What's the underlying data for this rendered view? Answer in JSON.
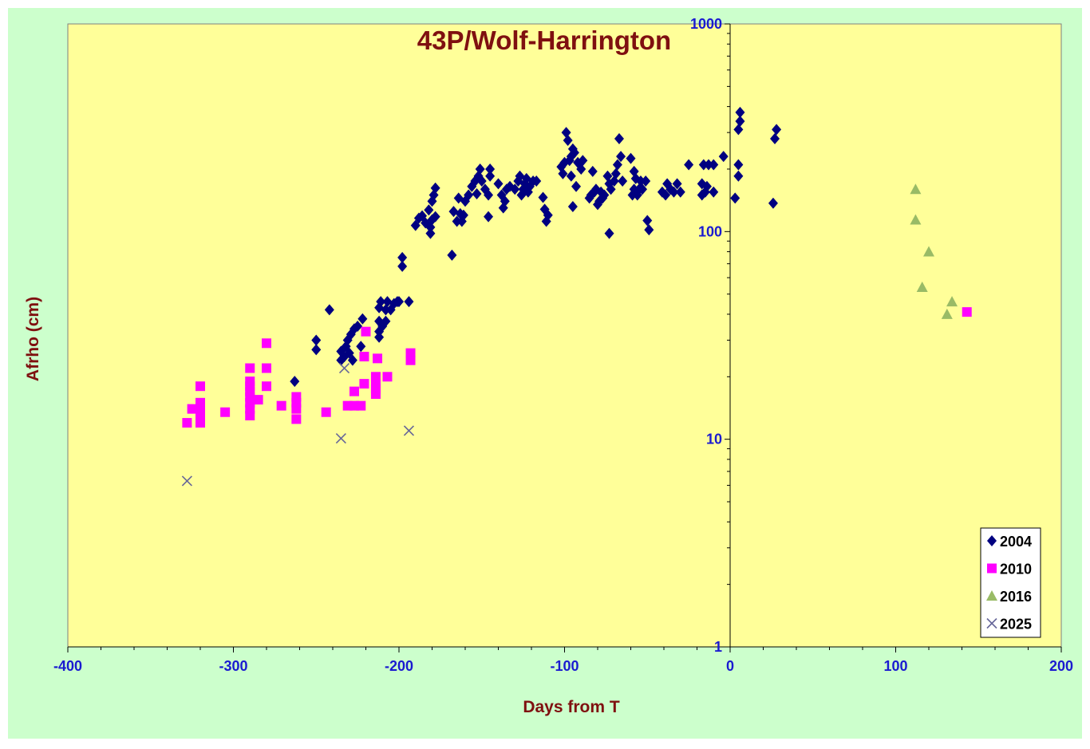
{
  "chart_data": {
    "type": "scatter",
    "title": "43P/Wolf-Harrington",
    "xlabel": "Days from T",
    "ylabel": "Afrho (cm)",
    "xlim": [
      -400,
      200
    ],
    "ylim": [
      1,
      1000
    ],
    "y_scale": "log",
    "x_ticks": [
      -400,
      -300,
      -200,
      -100,
      0,
      100,
      200
    ],
    "x_tick_labels": [
      "-400",
      "-300",
      "-200",
      "-100",
      "0",
      "100",
      "200"
    ],
    "y_ticks": [
      1,
      10,
      100,
      1000
    ],
    "y_tick_labels": [
      "1",
      "10",
      "100",
      "1000"
    ],
    "grid": false,
    "legend_position": "bottom-right",
    "colors": {
      "page_background": "#ccffcc",
      "plot_background": "#ffff99",
      "axis": "#000000"
    },
    "series": [
      {
        "name": "2004",
        "marker": "diamond",
        "color": "#000080",
        "points": [
          [
            -263,
            19
          ],
          [
            -250,
            27
          ],
          [
            -250,
            30
          ],
          [
            -242,
            42
          ],
          [
            -235,
            24
          ],
          [
            -235,
            26.5
          ],
          [
            -233,
            25
          ],
          [
            -232,
            28
          ],
          [
            -231,
            30
          ],
          [
            -230,
            26
          ],
          [
            -229,
            32
          ],
          [
            -228,
            24
          ],
          [
            -227,
            34
          ],
          [
            -225,
            35
          ],
          [
            -223,
            28
          ],
          [
            -222,
            38
          ],
          [
            -212,
            31
          ],
          [
            -212,
            33
          ],
          [
            -212,
            37
          ],
          [
            -212,
            43
          ],
          [
            -211,
            46
          ],
          [
            -210,
            35
          ],
          [
            -208,
            37
          ],
          [
            -208,
            42
          ],
          [
            -207,
            46
          ],
          [
            -205,
            42
          ],
          [
            -203,
            45
          ],
          [
            -201,
            46
          ],
          [
            -200,
            46
          ],
          [
            -198,
            68
          ],
          [
            -198,
            75
          ],
          [
            -194,
            46
          ],
          [
            -190,
            107
          ],
          [
            -188,
            116
          ],
          [
            -186,
            119
          ],
          [
            -184,
            110
          ],
          [
            -182,
            127
          ],
          [
            -181,
            98
          ],
          [
            -181,
            105
          ],
          [
            -180,
            114
          ],
          [
            -180,
            140
          ],
          [
            -179,
            150
          ],
          [
            -178,
            118
          ],
          [
            -178,
            162
          ],
          [
            -168,
            77
          ],
          [
            -167,
            125
          ],
          [
            -165,
            112
          ],
          [
            -164,
            145
          ],
          [
            -163,
            122
          ],
          [
            -162,
            112
          ],
          [
            -161,
            120
          ],
          [
            -160,
            140
          ],
          [
            -158,
            150
          ],
          [
            -156,
            165
          ],
          [
            -154,
            175
          ],
          [
            -153,
            152
          ],
          [
            -152,
            185
          ],
          [
            -151,
            200
          ],
          [
            -150,
            175
          ],
          [
            -148,
            160
          ],
          [
            -146,
            118
          ],
          [
            -146,
            150
          ],
          [
            -145,
            185
          ],
          [
            -145,
            200
          ],
          [
            -140,
            170
          ],
          [
            -138,
            150
          ],
          [
            -137,
            130
          ],
          [
            -136,
            140
          ],
          [
            -135,
            160
          ],
          [
            -133,
            165
          ],
          [
            -130,
            160
          ],
          [
            -128,
            175
          ],
          [
            -127,
            185
          ],
          [
            -126,
            150
          ],
          [
            -125,
            160
          ],
          [
            -124,
            170
          ],
          [
            -123,
            180
          ],
          [
            -122,
            155
          ],
          [
            -121,
            165
          ],
          [
            -119,
            175
          ],
          [
            -117,
            175
          ],
          [
            -113,
            146
          ],
          [
            -112,
            128
          ],
          [
            -111,
            112
          ],
          [
            -110,
            120
          ],
          [
            -102,
            205
          ],
          [
            -101,
            190
          ],
          [
            -100,
            215
          ],
          [
            -99,
            300
          ],
          [
            -98,
            275
          ],
          [
            -97,
            220
          ],
          [
            -96,
            230
          ],
          [
            -96,
            185
          ],
          [
            -95,
            250
          ],
          [
            -95,
            132
          ],
          [
            -94,
            240
          ],
          [
            -93,
            165
          ],
          [
            -92,
            215
          ],
          [
            -90,
            200
          ],
          [
            -89,
            220
          ],
          [
            -85,
            145
          ],
          [
            -84,
            150
          ],
          [
            -83,
            195
          ],
          [
            -82,
            155
          ],
          [
            -81,
            160
          ],
          [
            -80,
            135
          ],
          [
            -79,
            140
          ],
          [
            -78,
            155
          ],
          [
            -77,
            145
          ],
          [
            -76,
            150
          ],
          [
            -74,
            185
          ],
          [
            -73,
            170
          ],
          [
            -73,
            98
          ],
          [
            -72,
            160
          ],
          [
            -70,
            175
          ],
          [
            -69,
            190
          ],
          [
            -68,
            210
          ],
          [
            -67,
            280
          ],
          [
            -66,
            230
          ],
          [
            -65,
            175
          ],
          [
            -60,
            225
          ],
          [
            -59,
            150
          ],
          [
            -58,
            195
          ],
          [
            -58,
            160
          ],
          [
            -57,
            180
          ],
          [
            -56,
            150
          ],
          [
            -55,
            160
          ],
          [
            -54,
            175
          ],
          [
            -53,
            160
          ],
          [
            -51,
            175
          ],
          [
            -50,
            113
          ],
          [
            -49,
            102
          ],
          [
            -41,
            155
          ],
          [
            -39,
            150
          ],
          [
            -38,
            170
          ],
          [
            -36,
            160
          ],
          [
            -34,
            155
          ],
          [
            -32,
            170
          ],
          [
            -30,
            155
          ],
          [
            -25,
            210
          ],
          [
            -17,
            150
          ],
          [
            -17,
            170
          ],
          [
            -16,
            210
          ],
          [
            -15,
            155
          ],
          [
            -14,
            165
          ],
          [
            -13,
            210
          ],
          [
            -10,
            210
          ],
          [
            -10,
            155
          ],
          [
            -4,
            230
          ],
          [
            3,
            145
          ],
          [
            5,
            185
          ],
          [
            5,
            210
          ],
          [
            5,
            310
          ],
          [
            6,
            340
          ],
          [
            6,
            375
          ],
          [
            26,
            137
          ],
          [
            27,
            280
          ],
          [
            28,
            310
          ]
        ]
      },
      {
        "name": "2010",
        "marker": "square",
        "color": "#ff00ff",
        "points": [
          [
            -328,
            12
          ],
          [
            -325,
            14
          ],
          [
            -320,
            12
          ],
          [
            -320,
            13
          ],
          [
            -320,
            14
          ],
          [
            -320,
            15
          ],
          [
            -320,
            18
          ],
          [
            -305,
            13.5
          ],
          [
            -290,
            13
          ],
          [
            -290,
            14
          ],
          [
            -290,
            15
          ],
          [
            -290,
            16
          ],
          [
            -290,
            17
          ],
          [
            -290,
            18
          ],
          [
            -290,
            19
          ],
          [
            -290,
            22
          ],
          [
            -285,
            15.5
          ],
          [
            -280,
            18
          ],
          [
            -280,
            22
          ],
          [
            -280,
            29
          ],
          [
            -271,
            14.5
          ],
          [
            -262,
            12.5
          ],
          [
            -262,
            14
          ],
          [
            -262,
            15
          ],
          [
            -262,
            16
          ],
          [
            -244,
            13.5
          ],
          [
            -231,
            14.5
          ],
          [
            -227,
            17
          ],
          [
            -227,
            14.5
          ],
          [
            -223,
            14.5
          ],
          [
            -221,
            18.5
          ],
          [
            -221,
            25
          ],
          [
            -220,
            33
          ],
          [
            -214,
            16.5
          ],
          [
            -214,
            17.5
          ],
          [
            -214,
            18.5
          ],
          [
            -214,
            20
          ],
          [
            -213,
            24.5
          ],
          [
            -207,
            20
          ],
          [
            -193,
            24
          ],
          [
            -193,
            26
          ],
          [
            143,
            41
          ]
        ]
      },
      {
        "name": "2016",
        "marker": "triangle",
        "color": "#99bb66",
        "points": [
          [
            112,
            160
          ],
          [
            112,
            114
          ],
          [
            120,
            80
          ],
          [
            116,
            54
          ],
          [
            131,
            40
          ],
          [
            134,
            46
          ]
        ]
      },
      {
        "name": "2025",
        "marker": "cross",
        "color": "#666699",
        "points": [
          [
            -328,
            6.3
          ],
          [
            -235,
            10.1
          ],
          [
            -233,
            22
          ],
          [
            -194,
            11
          ]
        ]
      }
    ]
  }
}
